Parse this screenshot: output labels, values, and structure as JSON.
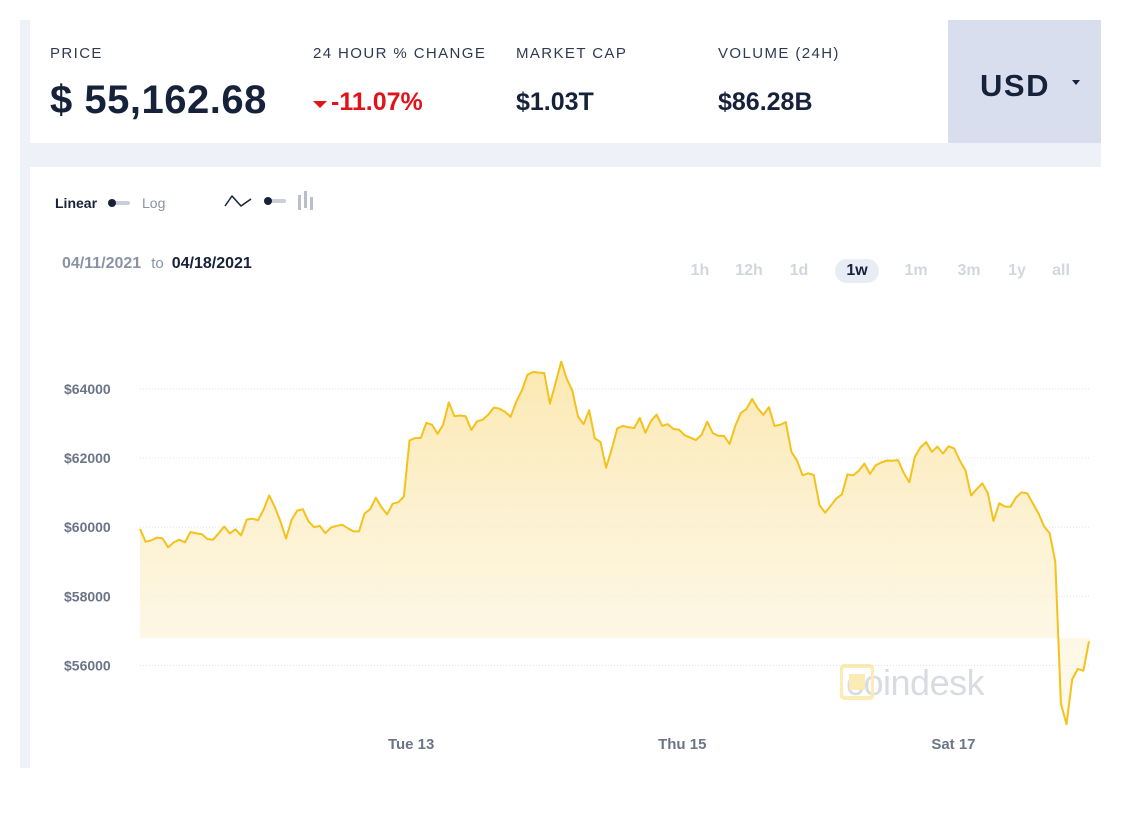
{
  "stats": {
    "price": {
      "label": "PRICE",
      "value": "$ 55,162.68"
    },
    "change": {
      "label": "24 HOUR % CHANGE",
      "value": "-11.07%",
      "direction": "down"
    },
    "market_cap": {
      "label": "MARKET CAP",
      "value": "$1.03T"
    },
    "volume": {
      "label": "VOLUME (24H)",
      "value": "$86.28B"
    }
  },
  "currency": {
    "selected": "USD",
    "icon": "chevron-down-icon"
  },
  "chart_controls": {
    "scale_options": [
      "Linear",
      "Log"
    ],
    "scale_selected": "Linear",
    "chart_types": [
      "line-chart-icon",
      "candlestick-icon"
    ],
    "chart_type_selected": "line-chart-icon"
  },
  "date_range": {
    "from": "04/11/2021",
    "to_word": "to",
    "to": "04/18/2021"
  },
  "timeframes": [
    {
      "label": "1h",
      "active": false
    },
    {
      "label": "12h",
      "active": false
    },
    {
      "label": "1d",
      "active": false
    },
    {
      "label": "1w",
      "active": true
    },
    {
      "label": "1m",
      "active": false
    },
    {
      "label": "3m",
      "active": false
    },
    {
      "label": "1y",
      "active": false
    },
    {
      "label": "all",
      "active": false
    }
  ],
  "watermark": {
    "text": "coindesk"
  },
  "colors": {
    "line": "#f4c21b",
    "fill": "#fdf3d4",
    "negative": "#e0131b",
    "text": "#16213a",
    "muted": "#8a93a6",
    "currency_bg": "#d9deef"
  },
  "chart_data": {
    "type": "area",
    "title": "",
    "xlabel": "",
    "ylabel": "",
    "ylim": [
      53500,
      65500
    ],
    "yticks": [
      64000,
      62000,
      60000,
      58000,
      56000
    ],
    "ytick_labels": [
      "$64000",
      "$62000",
      "$60000",
      "$58000",
      "$56000"
    ],
    "x_start": "2021-04-11",
    "x_end": "2021-04-18",
    "xticks": [
      "2021-04-13",
      "2021-04-15",
      "2021-04-17"
    ],
    "xtick_labels": [
      "Tue 13",
      "Thu 15",
      "Sat 17"
    ],
    "grid": true,
    "series": [
      {
        "values": [
          59950,
          59580,
          59620,
          59700,
          59680,
          59420,
          59560,
          59640,
          59560,
          59860,
          59820,
          59800,
          59660,
          59640,
          59820,
          60020,
          59820,
          59940,
          59760,
          60220,
          60250,
          60200,
          60500,
          60920,
          60580,
          60170,
          59670,
          60210,
          60480,
          60520,
          60170,
          60000,
          60040,
          59830,
          59990,
          60040,
          60070,
          59970,
          59880,
          59880,
          60400,
          60520,
          60850,
          60580,
          60370,
          60680,
          60720,
          60890,
          62510,
          62580,
          62580,
          63020,
          62960,
          62700,
          62970,
          63610,
          63210,
          63230,
          63210,
          62810,
          63060,
          63110,
          63250,
          63460,
          63430,
          63340,
          63190,
          63630,
          63950,
          64410,
          64490,
          64470,
          64460,
          63570,
          64160,
          64790,
          64290,
          63940,
          63200,
          62980,
          63380,
          62570,
          62460,
          61720,
          62260,
          62860,
          62930,
          62890,
          62870,
          63160,
          62730,
          63070,
          63260,
          62930,
          62980,
          62840,
          62820,
          62660,
          62590,
          62520,
          62670,
          63050,
          62720,
          62640,
          62640,
          62410,
          62930,
          63300,
          63420,
          63710,
          63440,
          63250,
          63470,
          62930,
          62960,
          63040,
          62180,
          61930,
          61500,
          61560,
          61510,
          60640,
          60420,
          60620,
          60830,
          60950,
          61530,
          61500,
          61630,
          61840,
          61540,
          61790,
          61870,
          61930,
          61920,
          61940,
          61570,
          61300,
          62040,
          62310,
          62460,
          62180,
          62330,
          62130,
          62340,
          62280,
          61930,
          61640,
          60920,
          61100,
          61270,
          60980,
          60180,
          60690,
          60600,
          60590,
          60860,
          61010,
          60980,
          60690,
          60400,
          60020,
          59820,
          59000,
          54900,
          54300,
          55600,
          55900,
          55850,
          56700
        ]
      }
    ]
  }
}
